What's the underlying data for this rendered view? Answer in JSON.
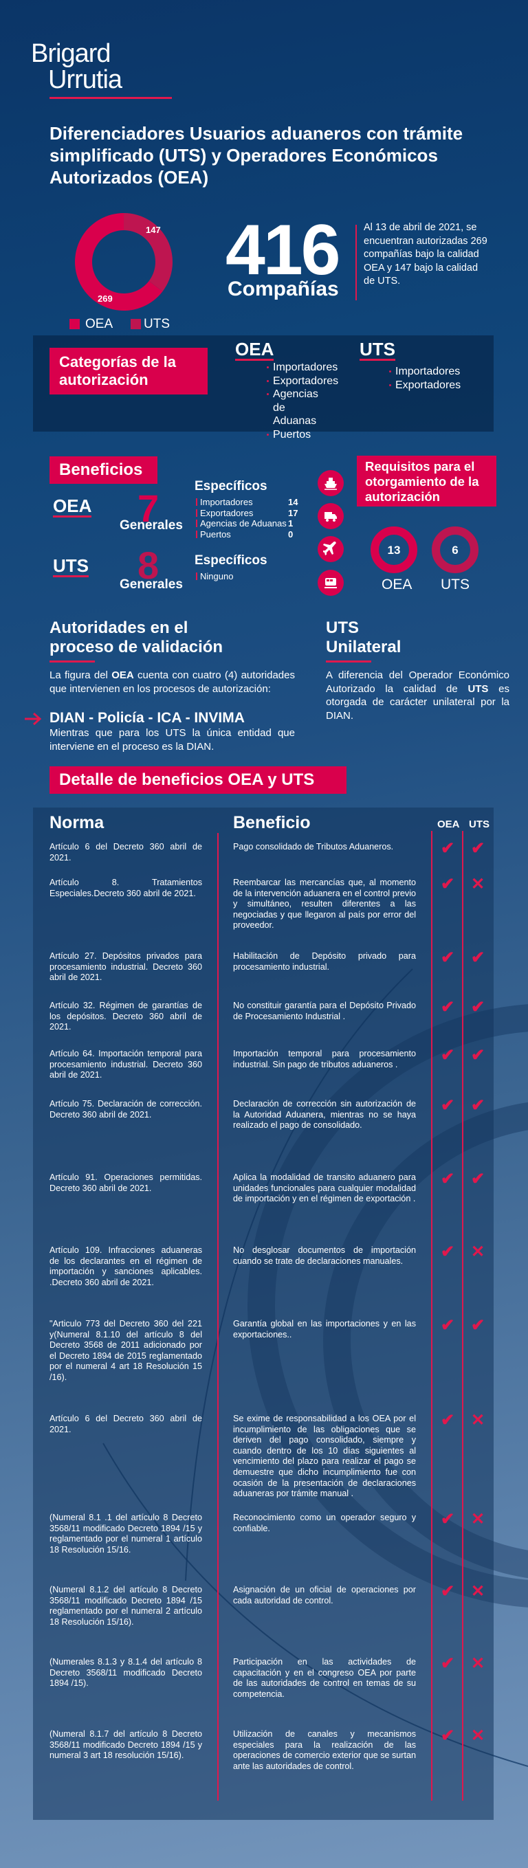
{
  "colors": {
    "accent": "#d9004c",
    "uts": "#be1550",
    "background_top": "#0b3567",
    "background_bottom": "#7596bc"
  },
  "logo": {
    "line1": "Brigard",
    "line2": "Urrutia"
  },
  "title": "Diferenciadores Usuarios aduaneros con trámite simplificado (UTS) y Operadores Económicos Autorizados (OEA)",
  "summary": {
    "chart_data": {
      "type": "pie",
      "style": "donut",
      "categories": [
        "OEA",
        "UTS"
      ],
      "values": [
        269,
        147
      ],
      "colors": [
        "#d9004c",
        "#be1550"
      ],
      "legend": "bottom"
    },
    "labels": {
      "oea_value": "269",
      "uts_value": "147"
    },
    "legend": [
      "OEA",
      "UTS"
    ],
    "total": "416",
    "total_label": "Compañías",
    "description": "Al 13 de abril de 2021, se encuentran autorizadas 269 compañías bajo la calidad OEA y 147 bajo la calidad de UTS."
  },
  "categories": {
    "title": "Categorías de la autorización",
    "oea": {
      "label": "OEA",
      "items": [
        "Importadores",
        "Exportadores",
        "Agencias de Aduanas",
        "Puertos"
      ]
    },
    "uts": {
      "label": "UTS",
      "items": [
        "Importadores",
        "Exportadores"
      ]
    }
  },
  "benefits": {
    "title": "Beneficios",
    "oea": {
      "label": "OEA",
      "general_count": "7",
      "general_label": "Generales",
      "specific_title": "Específicos",
      "specific": [
        {
          "name": "Importadores",
          "count": "14"
        },
        {
          "name": "Exportadores",
          "count": "17"
        },
        {
          "name": "Agencias de Aduanas",
          "count": "1"
        },
        {
          "name": "Puertos",
          "count": "0"
        }
      ]
    },
    "uts": {
      "label": "UTS",
      "general_count": "8",
      "general_label": "Generales",
      "specific_title": "Específicos",
      "specific": [
        "Ninguno"
      ]
    },
    "icons": [
      "ship-icon",
      "truck-icon",
      "airplane-icon",
      "train-icon"
    ]
  },
  "requirements": {
    "title": "Requisitos para el otorgamiento de la autorización",
    "oea": {
      "label": "OEA",
      "value": "13"
    },
    "uts": {
      "label": "UTS",
      "value": "6"
    }
  },
  "authorities": {
    "title": "Autoridades  en el proceso de validación",
    "p1_pre": "La figura del ",
    "p1_bold": "OEA",
    "p1_post": " cuenta con cuatro (4) autoridades que intervienen en los procesos de autorización:",
    "entities": "DIAN - Policía - ICA  - INVIMA",
    "p2": "Mientras que para los UTS la única entidad  que interviene en el proceso es la DIAN."
  },
  "unilateral": {
    "title": "UTS Unilateral",
    "p_pre": "A diferencia del Operador Económico Autorizado la calidad de ",
    "p_bold": "UTS",
    "p_post": " es otorgada de carácter unilateral por la DIAN."
  },
  "detail": {
    "title": "Detalle de beneficios OEA y UTS",
    "headers": {
      "norma": "Norma",
      "beneficio": "Beneficio",
      "oea": "OEA",
      "uts": "UTS"
    },
    "rows": [
      {
        "norma": "Artículo 6 del Decreto 360 abril de 2021.",
        "beneficio": "Pago consolidado de Tributos Aduaneros.",
        "oea": true,
        "uts": true
      },
      {
        "norma": "Artículo 8. Tratamientos Especiales.Decreto 360 abril de 2021.",
        "beneficio": "Reembarcar las mercancías que, al momento de la intervención aduanera en el control previo y simultáneo, resulten diferentes a las negociadas y que llegaron al país por error del proveedor.",
        "oea": true,
        "uts": false
      },
      {
        "norma": "Artículo 27. Depósitos privados para procesamiento industrial. Decreto 360 abril de 2021.",
        "beneficio": "Habilitación de Depósito privado para procesamiento industrial.",
        "oea": true,
        "uts": true
      },
      {
        "norma": "Artículo 32. Régimen de garantías de los depósitos. Decreto 360 abril de 2021.",
        "beneficio": "No constituir garantía para el Depósito Privado de Procesamiento Industrial .",
        "oea": true,
        "uts": true
      },
      {
        "norma": "Artículo 64. Importación temporal para procesamiento industrial. Decreto 360 abril de 2021.",
        "beneficio": "Importación temporal para procesamiento industrial. Sin pago de tributos aduaneros .",
        "oea": true,
        "uts": true
      },
      {
        "norma": "Artículo 75. Declaración de corrección. Decreto 360 abril de 2021.",
        "beneficio": "Declaración de corrección sin autorización de la Autoridad Aduanera, mientras no se haya realizado el pago de consolidado.",
        "oea": true,
        "uts": true
      },
      {
        "norma": "Artículo 91. Operaciones permitidas. Decreto 360 abril de 2021.",
        "beneficio": "Aplica la modalidad de transito aduanero para unidades funcionales para cualquier modalidad de importación y en el régimen de exportación .",
        "oea": true,
        "uts": true
      },
      {
        "norma": "Artículo 109. Infracciones aduaneras de los declarantes en el régimen de importación y sanciones aplicables. .Decreto 360 abril de 2021.",
        "beneficio": "No desglosar documentos de importación cuando se trate de declaraciones manuales.",
        "oea": true,
        "uts": false
      },
      {
        "norma": "\"Articulo 773 del Decreto 360 del 221 y(Numeral 8.1.10 del artículo 8 del Decreto 3568 de 2011 adicionado por el Decreto 1894 de 2015 reglamentado por el numeral 4 art 18 Resolución 15 /16).",
        "beneficio": "Garantía global en las importaciones y en las exportaciones..",
        "oea": true,
        "uts": true
      },
      {
        "norma": "Artículo 6 del Decreto 360 abril de 2021.",
        "beneficio": "Se exime de responsabilidad a los OEA por el incumplimiento de las obligaciones que se deriven del pago consolidado, siempre y cuando dentro de los 10 días siguientes al vencimiento del plazo para realizar el pago se demuestre que dicho incumplimiento fue con ocasión de la presentación de declaraciones aduaneras por trámite manual .",
        "oea": true,
        "uts": false
      },
      {
        "norma": "(Numeral 8.1 .1 del artículo 8 Decreto 3568/11 modificado Decreto 1894 /15 y reglamentado por el numeral 1 artículo 18 Resolución 15/16.",
        "beneficio": "Reconocimiento como un operador seguro y confiable.",
        "oea": true,
        "uts": false
      },
      {
        "norma": "(Numeral 8.1.2 del artículo 8 Decreto 3568/11 modificado Decreto 1894 /15 reglamentado por el numeral 2 artículo 18 Resolución 15/16).",
        "beneficio": "Asignación de un oficial de operaciones por cada autoridad de control.",
        "oea": true,
        "uts": false
      },
      {
        "norma": "(Numerales 8.1.3 y 8.1.4 del artículo 8 Decreto 3568/11 modificado Decreto 1894 /15).",
        "beneficio": "Participación en las actividades de capacitación y en el congreso OEA por parte de las autoridades de control en temas de su competencia.",
        "oea": true,
        "uts": false
      },
      {
        "norma": "(Numeral 8.1.7 del artículo 8 Decreto 3568/11 modificado Decreto 1894 /15 y numeral 3 art 18 resolución 15/16).",
        "beneficio": "Utilización de canales y mecanismos especiales para la realización de las operaciones de comercio exterior que se surtan ante las autoridades de control.",
        "oea": true,
        "uts": false
      }
    ],
    "check_symbol": "✔",
    "cross_symbol": "✕"
  }
}
